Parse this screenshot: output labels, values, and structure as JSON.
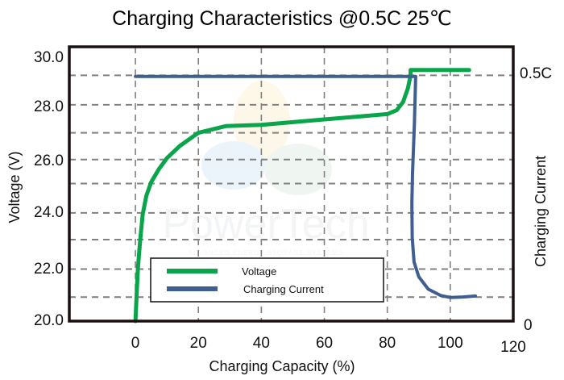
{
  "chart_data": {
    "type": "line",
    "title": "Charging Characteristics @0.5C 25℃",
    "xlabel": "Charging Capacity (%)",
    "ylabel": "Voltage (V)",
    "y2label": "Charging Current",
    "xlim": [
      -21,
      120
    ],
    "ylim": [
      20,
      30.27
    ],
    "y2lim": [
      0,
      0.5
    ],
    "grid": true,
    "x_ticks": [
      {
        "value": 0,
        "label": "0"
      },
      {
        "value": 20,
        "label": "20"
      },
      {
        "value": 40,
        "label": "40"
      },
      {
        "value": 60,
        "label": "60"
      },
      {
        "value": 80,
        "label": "80"
      },
      {
        "value": 100,
        "label": "100"
      },
      {
        "value": 120,
        "label": "120"
      }
    ],
    "y_ticks": [
      {
        "value": 30.0,
        "label": "30.0"
      },
      {
        "value": 28.0,
        "label": "28.0"
      },
      {
        "value": 26.0,
        "label": "26.0"
      },
      {
        "value": 24.0,
        "label": "24.0"
      },
      {
        "value": 22.0,
        "label": "22.0"
      },
      {
        "value": 20.0,
        "label": "20.0"
      }
    ],
    "y2_ticks": [
      {
        "value": 0.5,
        "label": "0.5C"
      },
      {
        "value": 0,
        "label": "0"
      }
    ],
    "h_grid_values": [
      29.2,
      28.1,
      27.05,
      26.05,
      25.15,
      24.05,
      23.05,
      21.95,
      20.9
    ],
    "v_grid_values": [
      0,
      20,
      40,
      60,
      80,
      100
    ],
    "legend": {
      "position": "bottom-center",
      "entries": [
        {
          "label": "Voltage",
          "color": "#0aa54a"
        },
        {
          "label": "Charging Current",
          "color": "#3f5f91"
        }
      ]
    },
    "series": [
      {
        "name": "Voltage",
        "axis": "left",
        "color": "#0aa54a",
        "points": [
          [
            0,
            20.0
          ],
          [
            0.4,
            21.0
          ],
          [
            0.8,
            22.0
          ],
          [
            1.5,
            23.0
          ],
          [
            2.3,
            24.0
          ],
          [
            3.5,
            24.7
          ],
          [
            5.0,
            25.2
          ],
          [
            7.5,
            25.7
          ],
          [
            10.0,
            26.1
          ],
          [
            14.0,
            26.55
          ],
          [
            20.0,
            27.05
          ],
          [
            28.7,
            27.3
          ],
          [
            40.0,
            27.35
          ],
          [
            50.0,
            27.45
          ],
          [
            60.0,
            27.55
          ],
          [
            70.0,
            27.65
          ],
          [
            80.0,
            27.75
          ],
          [
            83.0,
            27.9
          ],
          [
            85.0,
            28.2
          ],
          [
            86.5,
            28.7
          ],
          [
            87.4,
            29.2
          ],
          [
            87.4,
            29.4
          ],
          [
            106.0,
            29.4
          ]
        ]
      },
      {
        "name": "Charging Current",
        "axis": "right",
        "color": "#3f5f91",
        "points": [
          [
            0,
            0.497
          ],
          [
            89.0,
            0.497
          ],
          [
            88.6,
            0.4
          ],
          [
            88.0,
            0.3
          ],
          [
            87.8,
            0.24
          ],
          [
            87.9,
            0.17
          ],
          [
            88.5,
            0.12
          ],
          [
            90.0,
            0.09
          ],
          [
            93.0,
            0.065
          ],
          [
            97.0,
            0.052
          ],
          [
            100.0,
            0.048
          ],
          [
            104.0,
            0.049
          ],
          [
            108.0,
            0.051
          ]
        ]
      }
    ]
  },
  "watermark": {
    "brand": "PowerTech",
    "tagline": "ADVANCED ENERGY STORAGE SYSTEMS"
  }
}
